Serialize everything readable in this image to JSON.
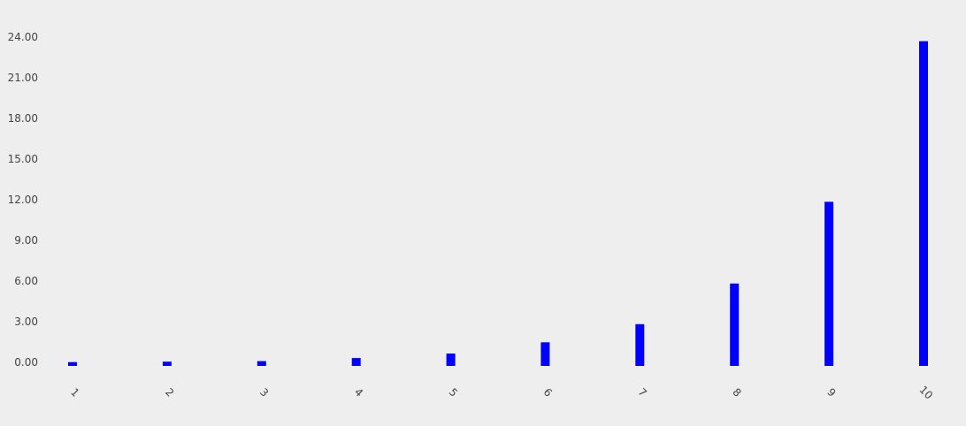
{
  "colors": {
    "background": "#eeeeee",
    "bar": "#0000ff",
    "tick_text": "#444444"
  },
  "chart_data": {
    "type": "bar",
    "categories": [
      "1",
      "2",
      "3",
      "4",
      "5",
      "6",
      "7",
      "8",
      "9",
      "10"
    ],
    "series": [
      {
        "values": [
          0.02,
          0.05,
          0.09,
          0.32,
          0.65,
          1.48,
          2.82,
          5.82,
          11.85,
          23.7
        ]
      }
    ],
    "y_ticks": [
      "0.00",
      "3.00",
      "6.00",
      "9.00",
      "12.00",
      "15.00",
      "18.00",
      "21.00",
      "24.00"
    ],
    "ylim": [
      -0.26,
      24.0
    ],
    "grid": false,
    "legend": "none",
    "x_tick_rotation": "45deg"
  }
}
